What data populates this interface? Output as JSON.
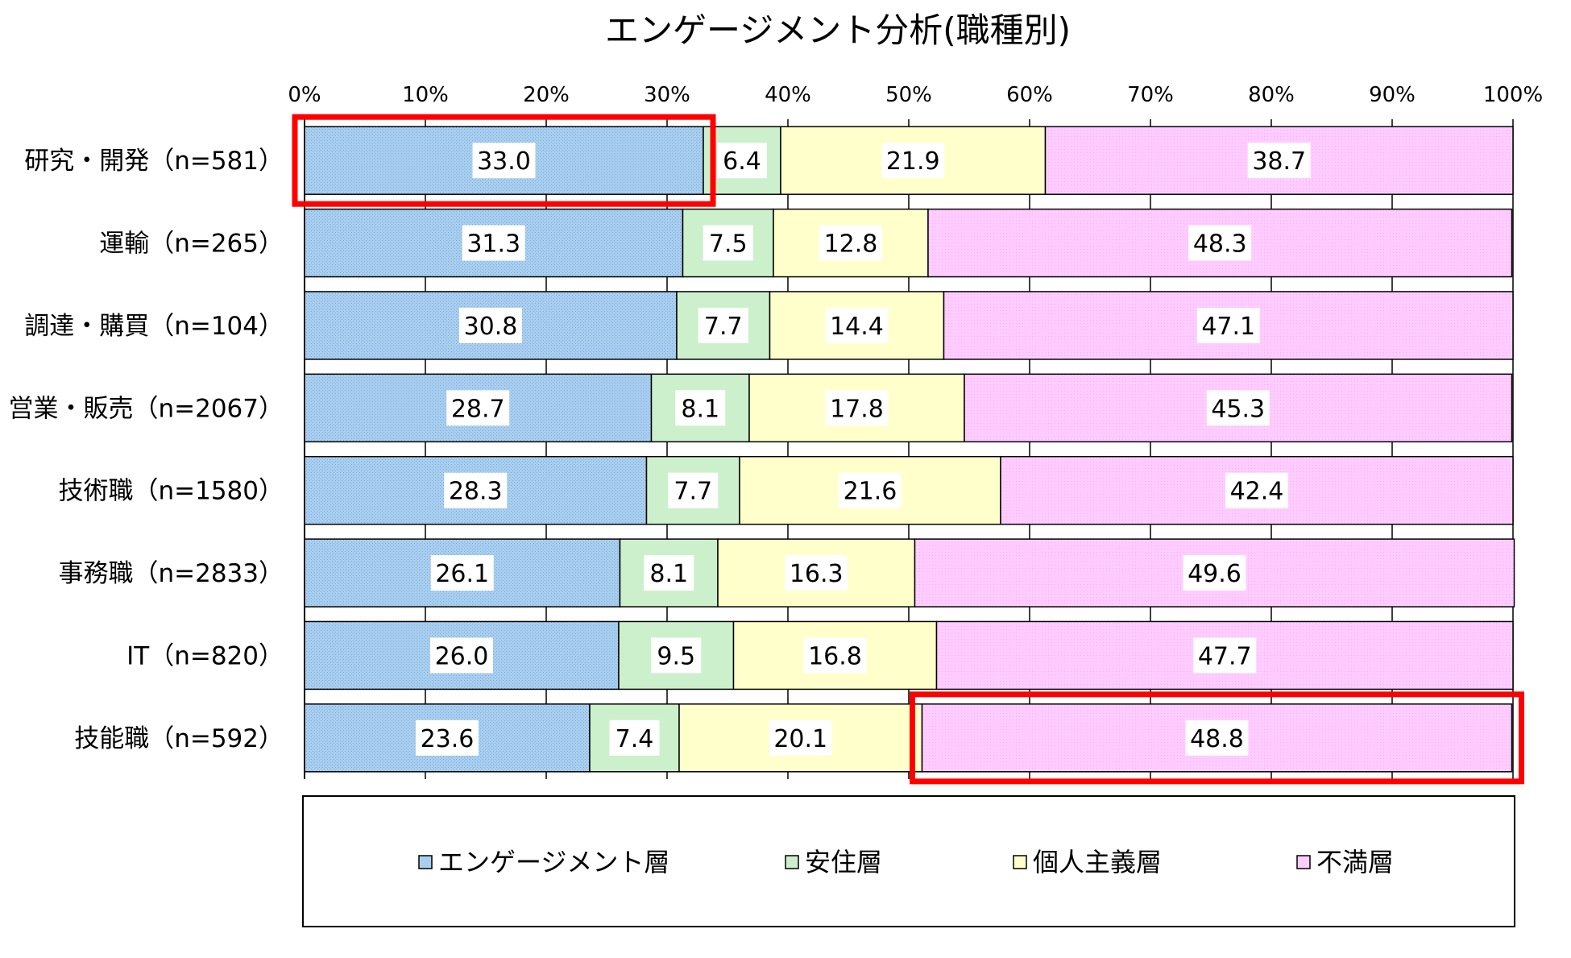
{
  "chart_data": {
    "type": "bar",
    "orientation": "horizontal",
    "stacked": "percent",
    "title": "エンゲージメント分析(職種別)",
    "xlim": [
      0,
      100
    ],
    "x_ticks": [
      "0%",
      "10%",
      "20%",
      "30%",
      "40%",
      "50%",
      "60%",
      "70%",
      "80%",
      "90%",
      "100%"
    ],
    "grid": true,
    "legend_position": "bottom",
    "categories": [
      "研究・開発（n=581）",
      "運輸（n=265）",
      "調達・購買（n=104）",
      "営業・販売（n=2067）",
      "技術職（n=1580）",
      "事務職（n=2833）",
      "IT（n=820）",
      "技能職（n=592）"
    ],
    "series": [
      {
        "name": "エンゲージメント層",
        "color": "#a9cff0",
        "values": [
          33.0,
          31.3,
          30.8,
          28.7,
          28.3,
          26.1,
          26.0,
          23.6
        ],
        "labels": [
          "33.0",
          "31.3",
          "30.8",
          "28.7",
          "28.3",
          "26.1",
          "26.0",
          "23.6"
        ]
      },
      {
        "name": "安住層",
        "color": "#ccf0cc",
        "values": [
          6.4,
          7.5,
          7.7,
          8.1,
          7.7,
          8.1,
          9.5,
          7.4
        ],
        "labels": [
          "6.4",
          "7.5",
          "7.7",
          "8.1",
          "7.7",
          "8.1",
          "9.5",
          "7.4"
        ]
      },
      {
        "name": "個人主義層",
        "color": "#ffffcc",
        "values": [
          21.9,
          12.8,
          14.4,
          17.8,
          21.6,
          16.3,
          16.8,
          20.1
        ],
        "labels": [
          "21.9",
          "12.8",
          "14.4",
          "17.8",
          "21.6",
          "16.3",
          "16.8",
          "20.1"
        ]
      },
      {
        "name": "不満層",
        "color": "#ffccff",
        "values": [
          38.7,
          48.3,
          47.1,
          45.3,
          42.4,
          49.6,
          47.7,
          48.8
        ],
        "labels": [
          "38.7",
          "48.3",
          "47.1",
          "45.3",
          "42.4",
          "49.6",
          "47.7",
          "48.8"
        ]
      }
    ],
    "highlights": [
      {
        "row": 0,
        "series": 0,
        "color": "#ff0000"
      },
      {
        "row": 7,
        "series": 3,
        "color": "#ff0000"
      }
    ]
  }
}
